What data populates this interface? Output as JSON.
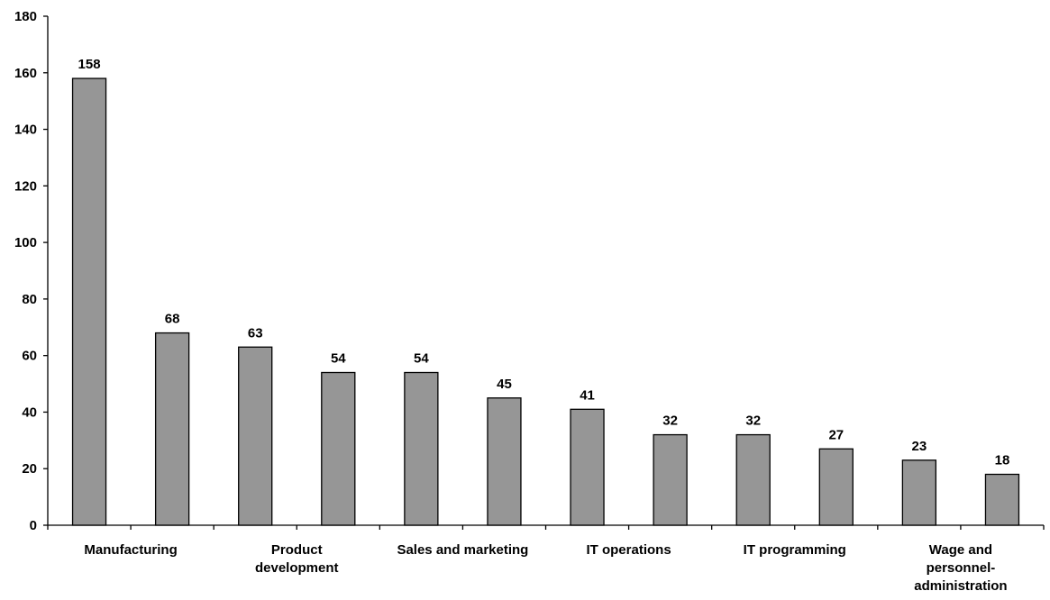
{
  "chart_data": {
    "type": "bar",
    "title": "",
    "xlabel": "",
    "ylabel": "",
    "ylim": [
      0,
      180
    ],
    "yticks": [
      0,
      20,
      40,
      60,
      80,
      100,
      120,
      140,
      160,
      180
    ],
    "grid": false,
    "legend": "none",
    "bar_color": "#969696",
    "category_labels": [
      {
        "lines": [
          "Manufacturing"
        ],
        "slot": 0
      },
      {
        "lines": [
          "Product",
          "development"
        ],
        "slot": 2
      },
      {
        "lines": [
          "Sales and marketing"
        ],
        "slot": 4
      },
      {
        "lines": [
          "IT operations"
        ],
        "slot": 6
      },
      {
        "lines": [
          "IT programming"
        ],
        "slot": 8
      },
      {
        "lines": [
          "Wage and",
          "personnel-",
          "administration"
        ],
        "slot": 10
      }
    ],
    "values": [
      158,
      68,
      63,
      54,
      54,
      45,
      41,
      32,
      32,
      27,
      23,
      18
    ],
    "data_labels": [
      "158",
      "68",
      "63",
      "54",
      "54",
      "45",
      "41",
      "32",
      "32",
      "27",
      "23",
      "18"
    ]
  }
}
